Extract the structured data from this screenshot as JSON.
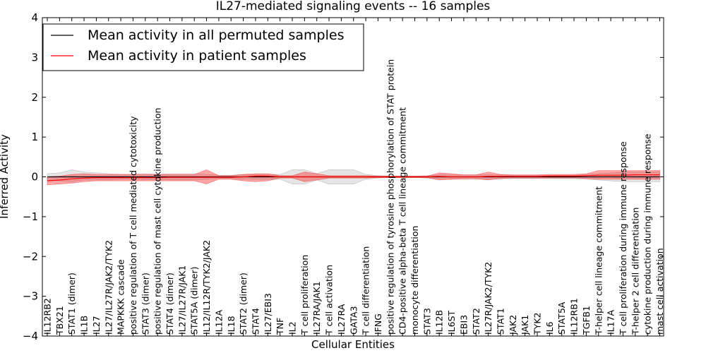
{
  "chart_data": {
    "type": "line",
    "title": "IL27-mediated signaling events -- 16 samples",
    "xlabel": "Cellular Entities",
    "ylabel": "Inferred Activity",
    "ylim": [
      -4,
      4
    ],
    "yticks": [
      -4,
      -3,
      -2,
      -1,
      0,
      1,
      2,
      3,
      4
    ],
    "ytick_labels": [
      "−4",
      "−3",
      "−2",
      "−1",
      "0",
      "1",
      "2",
      "3",
      "4"
    ],
    "legend_position": "top-left",
    "categories": [
      "IL12RB2",
      "TBX21",
      "STAT1 (dimer)",
      "IL1B",
      "IL27",
      "IL27/IL27R/JAK2/TYK2",
      "MAPKKK cascade",
      "positive regulation of T cell mediated cytotoxicity",
      "STAT3 (dimer)",
      "positive regulation of mast cell cytokine production",
      "STAT4 (dimer)",
      "IL27/IL27R/JAK1",
      "STAT5A (dimer)",
      "IL12/IL12R/TYK2/JAK2",
      "IL12A",
      "IL18",
      "STAT2 (dimer)",
      "STAT4",
      "IL27/EBI3",
      "TNF",
      "IL2",
      "T cell proliferation",
      "IL27RA/JAK1",
      "T cell activation",
      "IL27RA",
      "GATA3",
      "T cell differentiation",
      "IFNG",
      "positive regulation of tyrosine phosphorylation of STAT protein",
      "CD4-positive alpha-beta T cell lineage commitment",
      "monocyte differentiation",
      "STAT3",
      "IL12B",
      "IL6ST",
      "EBI3",
      "STAT2",
      "IL27R/JAK2/TYK2",
      "STAT1",
      "JAK2",
      "JAK1",
      "TYK2",
      "IL6",
      "STAT5A",
      "IL12RB1",
      "TGFB1",
      "T-helper cell lineage commitment",
      "IL17A",
      "T cell proliferation during immune response",
      "T-helper 2 cell differentiation",
      "cytokine production during immune response",
      "mast cell activation"
    ],
    "series": [
      {
        "name": "Mean activity in all permuted samples",
        "color": "#000000",
        "values": [
          0.0,
          0.0,
          0.0,
          0.0,
          0.0,
          0.0,
          0.0,
          0.0,
          0.0,
          0.0,
          0.0,
          0.0,
          0.0,
          0.0,
          0.0,
          0.0,
          0.0,
          0.0,
          0.0,
          0.0,
          0.0,
          0.0,
          0.0,
          0.0,
          0.0,
          0.0,
          0.0,
          0.0,
          0.0,
          0.0,
          0.0,
          0.0,
          0.0,
          0.0,
          0.0,
          0.0,
          0.0,
          0.0,
          0.0,
          0.0,
          0.0,
          0.0,
          0.0,
          0.0,
          0.0,
          0.0,
          0.0,
          0.0,
          0.0,
          0.0,
          0.0
        ],
        "band_upper": [
          0.08,
          0.1,
          0.18,
          0.12,
          0.1,
          0.08,
          0.06,
          0.06,
          0.08,
          0.06,
          0.08,
          0.08,
          0.08,
          0.06,
          0.04,
          0.04,
          0.06,
          0.06,
          0.06,
          0.06,
          0.18,
          0.18,
          0.08,
          0.18,
          0.18,
          0.18,
          0.06,
          0.03,
          0.02,
          0.02,
          0.02,
          0.03,
          0.05,
          0.05,
          0.05,
          0.05,
          0.05,
          0.05,
          0.04,
          0.04,
          0.04,
          0.04,
          0.04,
          0.04,
          0.06,
          0.08,
          0.1,
          0.12,
          0.12,
          0.12,
          0.12
        ],
        "band_lower": [
          -0.08,
          -0.1,
          -0.12,
          -0.08,
          -0.08,
          -0.08,
          -0.06,
          -0.06,
          -0.08,
          -0.06,
          -0.08,
          -0.08,
          -0.08,
          -0.06,
          -0.04,
          -0.04,
          -0.06,
          -0.06,
          -0.06,
          -0.06,
          -0.18,
          -0.18,
          -0.08,
          -0.18,
          -0.18,
          -0.18,
          -0.06,
          -0.03,
          -0.02,
          -0.02,
          -0.02,
          -0.03,
          -0.05,
          -0.05,
          -0.05,
          -0.05,
          -0.05,
          -0.05,
          -0.04,
          -0.04,
          -0.04,
          -0.04,
          -0.04,
          -0.04,
          -0.06,
          -0.08,
          -0.1,
          -0.12,
          -0.12,
          -0.12,
          -0.12
        ]
      },
      {
        "name": "Mean activity in patient samples",
        "color": "#ff0000",
        "values": [
          -0.1,
          -0.08,
          -0.05,
          -0.03,
          -0.02,
          -0.02,
          -0.02,
          -0.02,
          -0.02,
          -0.02,
          -0.01,
          -0.01,
          -0.01,
          -0.01,
          -0.01,
          -0.01,
          0.0,
          0.02,
          0.02,
          0.0,
          0.0,
          0.0,
          0.0,
          0.0,
          0.0,
          0.0,
          0.0,
          0.0,
          0.0,
          0.0,
          0.0,
          0.0,
          0.01,
          0.0,
          0.0,
          0.0,
          0.01,
          0.01,
          0.01,
          0.01,
          0.01,
          0.02,
          0.02,
          0.02,
          0.03,
          0.04,
          0.04,
          0.04,
          0.05,
          0.05,
          0.05
        ],
        "band_upper": [
          0.0,
          0.02,
          0.06,
          0.08,
          0.06,
          0.06,
          0.06,
          0.06,
          0.06,
          0.06,
          0.06,
          0.06,
          0.06,
          0.18,
          0.03,
          0.03,
          0.06,
          0.08,
          0.08,
          0.03,
          0.03,
          0.12,
          0.08,
          0.03,
          0.03,
          0.03,
          0.03,
          0.02,
          0.02,
          0.02,
          0.02,
          0.02,
          0.1,
          0.08,
          0.05,
          0.05,
          0.12,
          0.06,
          0.05,
          0.05,
          0.05,
          0.06,
          0.06,
          0.06,
          0.08,
          0.16,
          0.16,
          0.16,
          0.16,
          0.16,
          0.16
        ],
        "band_lower": [
          -0.2,
          -0.18,
          -0.16,
          -0.12,
          -0.1,
          -0.1,
          -0.1,
          -0.1,
          -0.1,
          -0.1,
          -0.1,
          -0.1,
          -0.1,
          -0.18,
          -0.06,
          -0.06,
          -0.1,
          -0.12,
          -0.1,
          -0.03,
          -0.03,
          -0.12,
          -0.08,
          -0.03,
          -0.03,
          -0.03,
          -0.03,
          -0.02,
          -0.02,
          -0.02,
          -0.02,
          -0.02,
          -0.08,
          -0.06,
          -0.05,
          -0.05,
          -0.08,
          -0.04,
          -0.03,
          -0.03,
          -0.03,
          -0.03,
          -0.03,
          -0.03,
          -0.04,
          -0.06,
          -0.06,
          -0.06,
          -0.06,
          -0.06,
          -0.06
        ]
      }
    ]
  }
}
